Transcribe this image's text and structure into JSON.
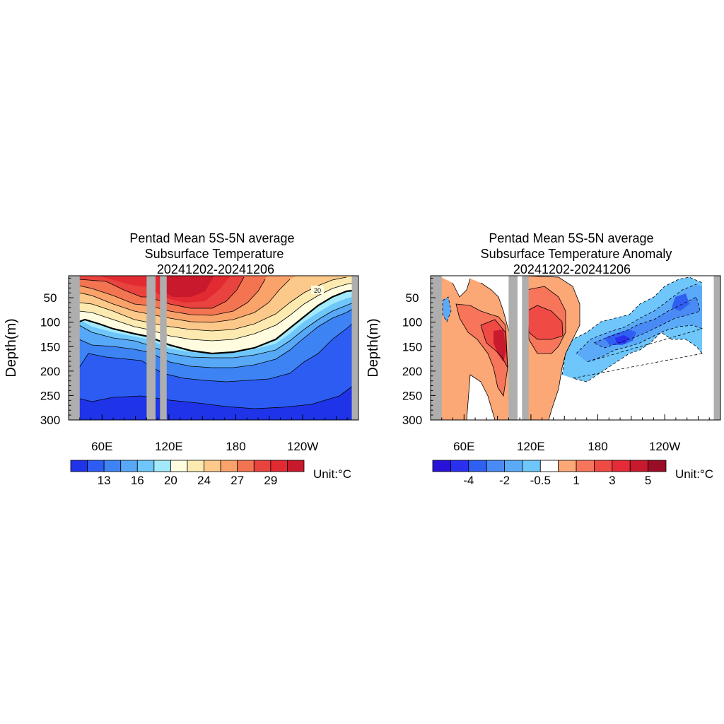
{
  "chart_data": [
    {
      "type": "contour",
      "title_lines": [
        "Pentad Mean 5S-5N average",
        "Subsurface Temperature",
        "20241202-20241206"
      ],
      "ylabel": "Depth(m)",
      "y_ticks": [
        "50",
        "100",
        "150",
        "200",
        "250",
        "300"
      ],
      "y_values": [
        50,
        100,
        150,
        200,
        250,
        300
      ],
      "ylim": [
        300,
        5
      ],
      "x_ticks": [
        "60E",
        "120E",
        "180",
        "120W"
      ],
      "x_values": [
        60,
        120,
        180,
        240
      ],
      "xlim": [
        30,
        290
      ],
      "land_masks": [
        [
          30,
          40
        ],
        [
          100,
          108
        ],
        [
          112,
          118
        ],
        [
          284,
          290
        ]
      ],
      "contour_label": "20",
      "colorbar_labels": [
        "13",
        "16",
        "20",
        "24",
        "27",
        "29"
      ],
      "colorbar_colors": [
        "#1f33e8",
        "#2c5cf2",
        "#3d83f4",
        "#57a8f7",
        "#6ec6fa",
        "#a2e9fb",
        "#fffce0",
        "#fdeab0",
        "#fdc98a",
        "#f9a26a",
        "#f37451",
        "#e9433f",
        "#e22a33",
        "#c81a2c"
      ],
      "unit": "Unit:°C"
    },
    {
      "type": "contour",
      "title_lines": [
        "Pentad Mean 5S-5N average",
        "Subsurface Temperature Anomaly",
        "20241202-20241206"
      ],
      "ylabel": "Depth(m)",
      "y_ticks": [
        "50",
        "100",
        "150",
        "200",
        "250",
        "300"
      ],
      "y_values": [
        50,
        100,
        150,
        200,
        250,
        300
      ],
      "ylim": [
        300,
        5
      ],
      "x_ticks": [
        "60E",
        "120E",
        "180",
        "120W"
      ],
      "x_values": [
        60,
        120,
        180,
        240
      ],
      "xlim": [
        30,
        290
      ],
      "land_masks": [
        [
          30,
          40
        ],
        [
          100,
          108
        ],
        [
          112,
          118
        ],
        [
          284,
          290
        ]
      ],
      "colorbar_labels": [
        "-4",
        "-2",
        "-0.5",
        "1",
        "3",
        "5"
      ],
      "colorbar_colors": [
        "#2812d8",
        "#2a30f0",
        "#3060f2",
        "#4a8af4",
        "#5aaaf8",
        "#6ec6fa",
        "#ffffff",
        "#fba776",
        "#f7755a",
        "#ef4a44",
        "#e42b37",
        "#c81a2c",
        "#9b0c26"
      ],
      "unit": "Unit:°C"
    }
  ]
}
